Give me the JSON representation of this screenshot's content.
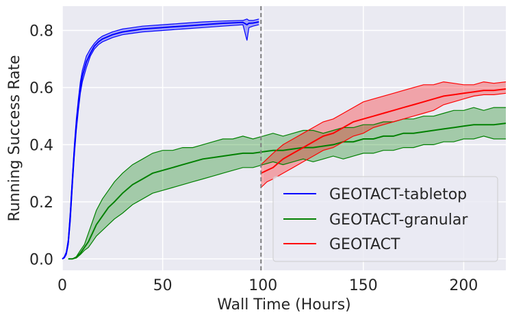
{
  "chart_data": {
    "type": "line",
    "xlabel": "Wall Time (Hours)",
    "ylabel": "Running Success Rate",
    "xlim": [
      0,
      221
    ],
    "ylim": [
      -0.04,
      0.885
    ],
    "x_ticks": [
      0,
      50,
      100,
      150,
      200
    ],
    "y_ticks": [
      0.0,
      0.2,
      0.4,
      0.6,
      0.8
    ],
    "x_tick_labels": [
      "0",
      "50",
      "100",
      "150",
      "200"
    ],
    "y_tick_labels": [
      "0.0",
      "0.2",
      "0.4",
      "0.6",
      "0.8"
    ],
    "grid": true,
    "legend_position": "lower-right",
    "vline": {
      "x": 99,
      "style": "dashed",
      "color": "#7f7f7f"
    },
    "series": [
      {
        "name": "GEOTACT-tabletop",
        "color": "#0000ff",
        "x": [
          0,
          1,
          2,
          3,
          4,
          5,
          6,
          7,
          8,
          9,
          10,
          12,
          14,
          16,
          18,
          20,
          25,
          30,
          35,
          40,
          50,
          60,
          70,
          80,
          90,
          92,
          93,
          95,
          98
        ],
        "mean": [
          0.0,
          0.005,
          0.02,
          0.06,
          0.15,
          0.27,
          0.38,
          0.47,
          0.54,
          0.6,
          0.64,
          0.69,
          0.72,
          0.745,
          0.76,
          0.77,
          0.785,
          0.795,
          0.8,
          0.805,
          0.81,
          0.815,
          0.82,
          0.825,
          0.828,
          0.82,
          0.825,
          0.826,
          0.83
        ],
        "lower": [
          0.0,
          0.003,
          0.015,
          0.05,
          0.13,
          0.25,
          0.36,
          0.45,
          0.52,
          0.58,
          0.62,
          0.67,
          0.71,
          0.735,
          0.75,
          0.76,
          0.775,
          0.785,
          0.79,
          0.795,
          0.8,
          0.805,
          0.81,
          0.815,
          0.82,
          0.765,
          0.81,
          0.815,
          0.82
        ],
        "upper": [
          0.0,
          0.008,
          0.025,
          0.07,
          0.17,
          0.29,
          0.4,
          0.49,
          0.56,
          0.62,
          0.66,
          0.71,
          0.735,
          0.755,
          0.77,
          0.78,
          0.795,
          0.805,
          0.81,
          0.815,
          0.82,
          0.825,
          0.83,
          0.833,
          0.835,
          0.84,
          0.835,
          0.835,
          0.84
        ]
      },
      {
        "name": "GEOTACT-granular",
        "color": "#008000",
        "x": [
          3,
          5,
          7,
          9,
          11,
          13,
          15,
          17,
          20,
          23,
          26,
          30,
          35,
          40,
          45,
          50,
          55,
          60,
          65,
          70,
          75,
          80,
          85,
          90,
          95,
          100,
          105,
          110,
          115,
          120,
          125,
          130,
          135,
          140,
          145,
          150,
          155,
          160,
          165,
          170,
          175,
          180,
          185,
          190,
          195,
          200,
          205,
          210,
          215,
          221
        ],
        "mean": [
          0.0,
          0.0,
          0.005,
          0.02,
          0.04,
          0.06,
          0.09,
          0.12,
          0.15,
          0.18,
          0.2,
          0.23,
          0.26,
          0.28,
          0.3,
          0.31,
          0.32,
          0.33,
          0.34,
          0.35,
          0.355,
          0.36,
          0.365,
          0.37,
          0.37,
          0.375,
          0.38,
          0.38,
          0.385,
          0.39,
          0.39,
          0.395,
          0.4,
          0.41,
          0.41,
          0.42,
          0.42,
          0.43,
          0.43,
          0.44,
          0.44,
          0.445,
          0.45,
          0.455,
          0.46,
          0.465,
          0.47,
          0.47,
          0.47,
          0.475
        ],
        "lower": [
          0.0,
          0.0,
          0.003,
          0.015,
          0.03,
          0.04,
          0.06,
          0.08,
          0.1,
          0.12,
          0.14,
          0.16,
          0.19,
          0.21,
          0.23,
          0.24,
          0.25,
          0.26,
          0.27,
          0.28,
          0.29,
          0.3,
          0.31,
          0.32,
          0.32,
          0.33,
          0.34,
          0.33,
          0.34,
          0.35,
          0.34,
          0.35,
          0.36,
          0.35,
          0.36,
          0.37,
          0.37,
          0.38,
          0.38,
          0.39,
          0.39,
          0.4,
          0.4,
          0.41,
          0.41,
          0.42,
          0.42,
          0.43,
          0.42,
          0.42
        ],
        "upper": [
          0.0,
          0.0,
          0.008,
          0.03,
          0.05,
          0.09,
          0.13,
          0.17,
          0.21,
          0.24,
          0.27,
          0.3,
          0.33,
          0.35,
          0.37,
          0.38,
          0.38,
          0.39,
          0.39,
          0.4,
          0.41,
          0.42,
          0.42,
          0.43,
          0.42,
          0.43,
          0.44,
          0.43,
          0.44,
          0.45,
          0.45,
          0.44,
          0.45,
          0.46,
          0.46,
          0.47,
          0.47,
          0.48,
          0.48,
          0.49,
          0.49,
          0.5,
          0.5,
          0.51,
          0.52,
          0.52,
          0.53,
          0.52,
          0.53,
          0.53
        ]
      },
      {
        "name": "GEOTACT",
        "color": "#ff0000",
        "x": [
          99,
          102,
          105,
          110,
          115,
          120,
          125,
          130,
          135,
          140,
          145,
          150,
          155,
          160,
          165,
          170,
          175,
          180,
          185,
          190,
          195,
          200,
          205,
          210,
          215,
          221
        ],
        "mean": [
          0.3,
          0.31,
          0.32,
          0.35,
          0.37,
          0.39,
          0.41,
          0.43,
          0.44,
          0.46,
          0.48,
          0.49,
          0.5,
          0.51,
          0.52,
          0.53,
          0.54,
          0.55,
          0.56,
          0.57,
          0.575,
          0.58,
          0.585,
          0.59,
          0.59,
          0.595
        ],
        "lower": [
          0.25,
          0.27,
          0.28,
          0.3,
          0.32,
          0.34,
          0.36,
          0.38,
          0.39,
          0.41,
          0.43,
          0.44,
          0.46,
          0.47,
          0.48,
          0.49,
          0.5,
          0.51,
          0.52,
          0.54,
          0.55,
          0.56,
          0.57,
          0.575,
          0.575,
          0.58
        ],
        "upper": [
          0.33,
          0.35,
          0.37,
          0.4,
          0.42,
          0.44,
          0.46,
          0.48,
          0.49,
          0.51,
          0.53,
          0.55,
          0.56,
          0.57,
          0.58,
          0.59,
          0.6,
          0.61,
          0.61,
          0.62,
          0.615,
          0.61,
          0.61,
          0.62,
          0.615,
          0.62
        ]
      }
    ]
  }
}
